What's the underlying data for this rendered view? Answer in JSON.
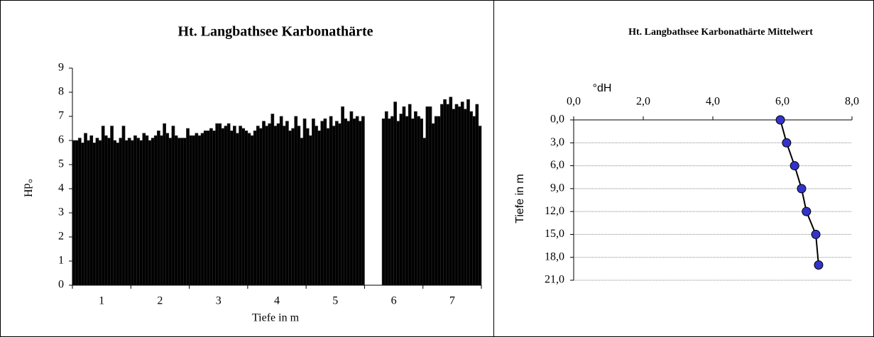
{
  "chart_data": [
    {
      "type": "bar",
      "title": "Ht. Langbathsee  Karbonathärte",
      "xlabel": "Tiefe in m",
      "ylabel": "°dH",
      "categories": [
        "1",
        "2",
        "3",
        "4",
        "5",
        "6",
        "7"
      ],
      "color": "#000000",
      "ylim": [
        0,
        9
      ],
      "yticks": [
        0,
        1,
        2,
        3,
        4,
        5,
        6,
        7,
        8,
        9
      ],
      "series": [
        {
          "values": [
            6.0,
            6.0,
            6.2,
            6.3,
            6.5,
            null,
            6.1
          ]
        },
        {
          "values": [
            6.0,
            6.2,
            6.2,
            6.2,
            6.2,
            null,
            7.4
          ]
        },
        {
          "values": [
            6.1,
            6.1,
            6.3,
            6.4,
            6.9,
            null,
            7.4
          ]
        },
        {
          "values": [
            5.9,
            6.0,
            6.2,
            6.6,
            6.6,
            null,
            6.7
          ]
        },
        {
          "values": [
            6.3,
            6.3,
            6.3,
            6.5,
            6.4,
            null,
            7.0
          ]
        },
        {
          "values": [
            6.0,
            6.2,
            6.4,
            6.8,
            6.8,
            null,
            7.0
          ]
        },
        {
          "values": [
            6.2,
            6.0,
            6.4,
            6.6,
            6.9,
            6.9,
            7.5
          ]
        },
        {
          "values": [
            5.9,
            6.1,
            6.5,
            6.7,
            6.5,
            7.2,
            7.7
          ]
        },
        {
          "values": [
            6.1,
            6.2,
            6.4,
            7.1,
            7.0,
            6.9,
            7.5
          ]
        },
        {
          "values": [
            6.0,
            6.4,
            6.7,
            6.6,
            6.6,
            7.0,
            7.8
          ]
        },
        {
          "values": [
            6.6,
            6.2,
            6.7,
            6.7,
            6.8,
            7.6,
            7.3
          ]
        },
        {
          "values": [
            6.2,
            6.7,
            6.5,
            7.0,
            6.7,
            6.8,
            7.5
          ]
        },
        {
          "values": [
            6.1,
            6.3,
            6.6,
            6.6,
            7.4,
            7.1,
            7.4
          ]
        },
        {
          "values": [
            6.6,
            6.1,
            6.7,
            6.8,
            6.9,
            7.4,
            7.6
          ]
        },
        {
          "values": [
            6.0,
            6.6,
            6.4,
            6.4,
            6.8,
            7.0,
            7.3
          ]
        },
        {
          "values": [
            5.9,
            6.2,
            6.6,
            6.5,
            7.2,
            7.5,
            7.7
          ]
        },
        {
          "values": [
            6.1,
            6.1,
            6.3,
            7.0,
            6.9,
            6.9,
            7.2
          ]
        },
        {
          "values": [
            6.6,
            6.1,
            6.6,
            6.6,
            7.0,
            7.2,
            7.0
          ]
        },
        {
          "values": [
            6.0,
            6.1,
            6.5,
            6.1,
            6.8,
            7.0,
            7.5
          ]
        },
        {
          "values": [
            6.1,
            6.5,
            6.4,
            6.9,
            7.0,
            6.9,
            6.6
          ]
        }
      ]
    },
    {
      "type": "line",
      "title": "Ht. Langbathsee  Karbonathärte Mittelwert",
      "xlabel": "°dH",
      "ylabel": "Tiefe in m",
      "y": [
        0,
        3,
        6,
        9,
        12,
        15,
        19
      ],
      "values": [
        5.94,
        6.12,
        6.35,
        6.55,
        6.69,
        6.96,
        7.04
      ],
      "color": "#3333cc",
      "line_color": "#000000",
      "xlim": [
        0,
        8
      ],
      "xticks": [
        {
          "value": 0,
          "label": "0,0"
        },
        {
          "value": 2,
          "label": "2,0"
        },
        {
          "value": 4,
          "label": "4,0"
        },
        {
          "value": 6,
          "label": "6,0"
        },
        {
          "value": 8,
          "label": "8,0"
        }
      ],
      "ylim": [
        0,
        21
      ],
      "y_inverted": true,
      "grid": true,
      "yticks": [
        {
          "value": 0,
          "label": "0,0"
        },
        {
          "value": 3,
          "label": "3,0"
        },
        {
          "value": 6,
          "label": "6,0"
        },
        {
          "value": 9,
          "label": "9,0"
        },
        {
          "value": 12,
          "label": "12,0"
        },
        {
          "value": 15,
          "label": "15,0"
        },
        {
          "value": 18,
          "label": "18,0"
        },
        {
          "value": 21,
          "label": "21,0"
        }
      ]
    }
  ]
}
